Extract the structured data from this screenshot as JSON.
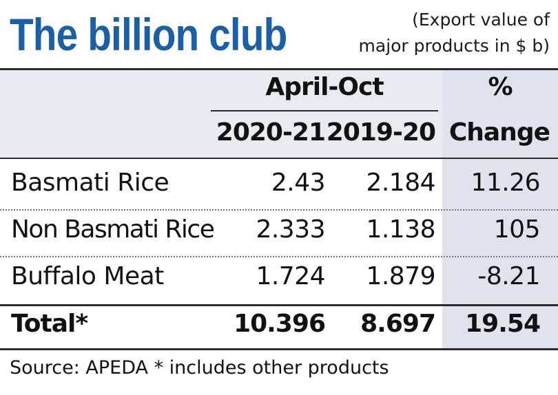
{
  "chart_data": {
    "type": "table",
    "title": "The billion club",
    "subtitle_line1": "(Export value of",
    "subtitle_line2": "major products in $ b)",
    "period_header": "April-Oct",
    "columns": [
      "2020-21",
      "2019-20"
    ],
    "change_header_line1": "%",
    "change_header_line2": "Change",
    "rows": [
      {
        "product": "Basmati Rice",
        "v2020_21": "2.43",
        "v2019_20": "2.184",
        "change": "11.26"
      },
      {
        "product": "Non Basmati Rice",
        "v2020_21": "2.333",
        "v2019_20": "1.138",
        "change": "105"
      },
      {
        "product": "Buffalo Meat",
        "v2020_21": "1.724",
        "v2019_20": "1.879",
        "change": "-8.21"
      }
    ],
    "total": {
      "product": "Total*",
      "v2020_21": "10.396",
      "v2019_20": "8.697",
      "change": "19.54"
    },
    "source": "Source: APEDA  * includes other products"
  },
  "colors": {
    "title": "#1b5fa6",
    "header_bg": "#e8ebf1",
    "change_column_bg": "#dfe3ee",
    "text": "#111111"
  }
}
